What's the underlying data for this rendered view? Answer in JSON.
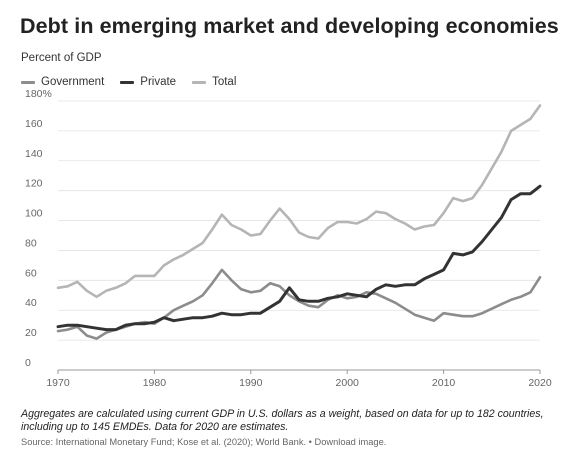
{
  "chart_data": {
    "type": "line",
    "title": "Debt in emerging market and developing economies",
    "subtitle": "Percent of GDP",
    "ylim": [
      0,
      180
    ],
    "yticks": [
      "0",
      "20",
      "40",
      "60",
      "80",
      "100",
      "120",
      "140",
      "160",
      "180%"
    ],
    "ytick_values": [
      0,
      20,
      40,
      60,
      80,
      100,
      120,
      140,
      160,
      180
    ],
    "xlim": [
      1970,
      2020
    ],
    "xticks": [
      1970,
      1980,
      1990,
      2000,
      2010,
      2020
    ],
    "xtick_labels": [
      "1970",
      "1980",
      "1990",
      "2000",
      "2010",
      "2020"
    ],
    "grid": true,
    "legend_position": "top-left",
    "x": [
      1970,
      1971,
      1972,
      1973,
      1974,
      1975,
      1976,
      1977,
      1978,
      1979,
      1980,
      1981,
      1982,
      1983,
      1984,
      1985,
      1986,
      1987,
      1988,
      1989,
      1990,
      1991,
      1992,
      1993,
      1994,
      1995,
      1996,
      1997,
      1998,
      1999,
      2000,
      2001,
      2002,
      2003,
      2004,
      2005,
      2006,
      2007,
      2008,
      2009,
      2010,
      2011,
      2012,
      2013,
      2014,
      2015,
      2016,
      2017,
      2018,
      2019,
      2020
    ],
    "series": [
      {
        "name": "Government",
        "color": "#8c8c8c",
        "values": [
          26,
          27,
          29,
          23,
          21,
          25,
          27,
          29,
          31,
          32,
          31,
          35,
          40,
          43,
          46,
          50,
          58,
          67,
          60,
          54,
          52,
          53,
          58,
          56,
          50,
          46,
          43,
          42,
          47,
          50,
          48,
          49,
          52,
          51,
          48,
          45,
          41,
          37,
          35,
          33,
          38,
          37,
          36,
          36,
          38,
          41,
          44,
          47,
          49,
          52,
          62
        ]
      },
      {
        "name": "Private",
        "color": "#333333",
        "values": [
          29,
          30,
          30,
          29,
          28,
          27,
          27,
          30,
          31,
          31,
          32,
          35,
          33,
          34,
          35,
          35,
          36,
          38,
          37,
          37,
          38,
          38,
          42,
          46,
          55,
          47,
          46,
          46,
          48,
          49,
          51,
          50,
          49,
          54,
          57,
          56,
          57,
          57,
          61,
          64,
          67,
          78,
          77,
          79,
          86,
          94,
          102,
          114,
          118,
          118,
          123
        ]
      },
      {
        "name": "Total",
        "color": "#b5b5b5",
        "values": [
          55,
          56,
          59,
          53,
          49,
          53,
          55,
          58,
          63,
          63,
          63,
          70,
          74,
          77,
          81,
          85,
          94,
          104,
          97,
          94,
          90,
          91,
          100,
          108,
          101,
          92,
          89,
          88,
          95,
          99,
          99,
          98,
          101,
          106,
          105,
          101,
          98,
          94,
          96,
          97,
          105,
          115,
          113,
          115,
          124,
          135,
          146,
          160,
          164,
          168,
          177
        ]
      }
    ]
  },
  "note": "Aggregates are calculated using current GDP in U.S. dollars as a weight, based on data for up to 182 countries, including up to 145 EMDEs. Data for 2020 are estimates.",
  "source": "Source: International Monetary Fund; Kose et al. (2020); World Bank. • Download image."
}
